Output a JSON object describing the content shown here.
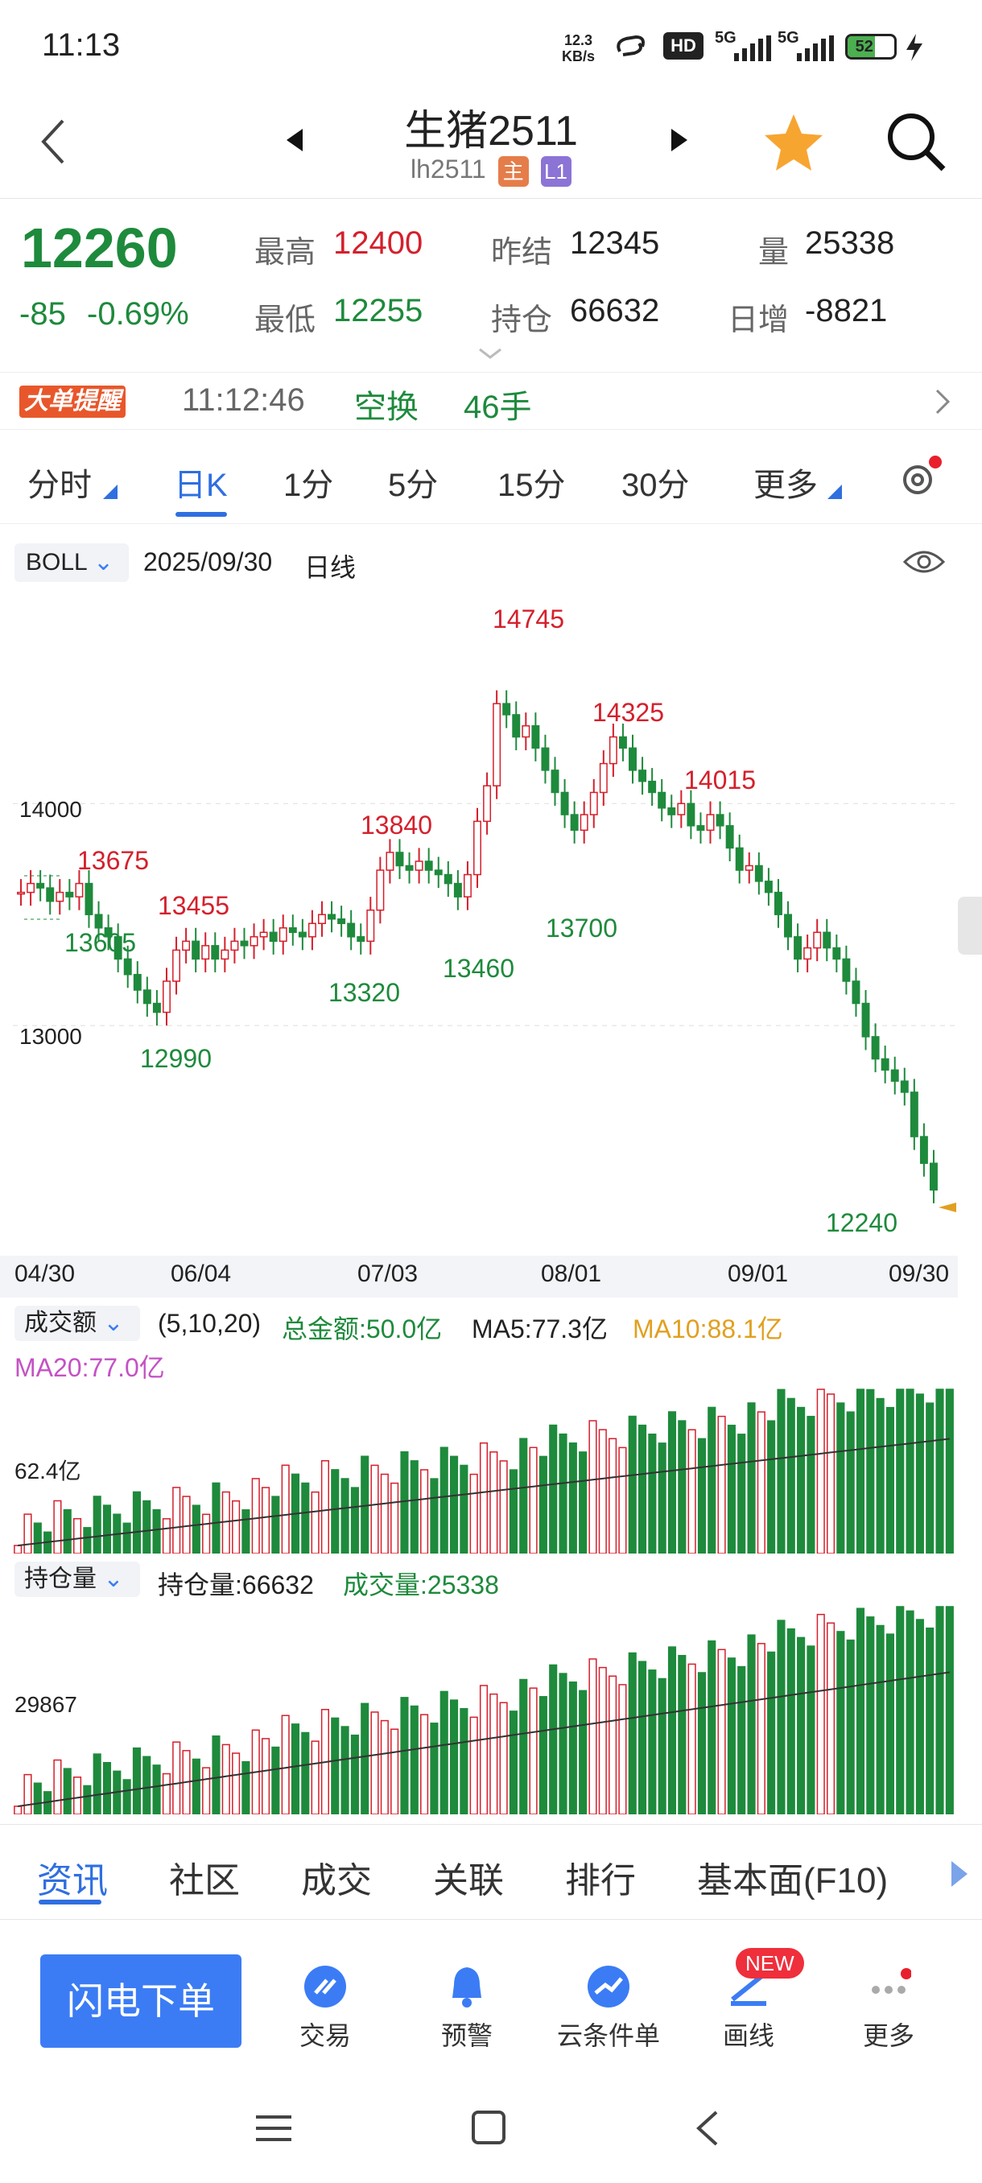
{
  "status_bar": {
    "time": "11:13",
    "net_speed": "12.3",
    "net_unit": "KB/s",
    "signal_a": "5G",
    "signal_b": "5G",
    "battery": "52"
  },
  "header": {
    "title": "生猪2511",
    "code": "lh2511",
    "tag_main": "主",
    "tag_level": "L1"
  },
  "quote": {
    "price": "12260",
    "change": "-85",
    "change_pct": "-0.69%",
    "high_label": "最高",
    "high": "12400",
    "low_label": "最低",
    "low": "12255",
    "prev_settle_label": "昨结",
    "prev_settle": "12345",
    "open_interest_label": "持仓",
    "open_interest": "66632",
    "volume_label": "量",
    "volume": "25338",
    "daily_inc_label": "日增",
    "daily_inc": "-8821"
  },
  "alert": {
    "badge_a": "大单",
    "badge_b": "提醒",
    "time": "11:12:46",
    "type": "空换",
    "amount": "46手"
  },
  "tabs": [
    "分时",
    "日K",
    "1分",
    "5分",
    "15分",
    "30分",
    "更多"
  ],
  "active_tab": "日K",
  "chart_header": {
    "indicator": "BOLL",
    "date": "2025/09/30",
    "period": "日线"
  },
  "chart_data": {
    "type": "candlestick",
    "y_ticks": [
      "14000",
      "13000"
    ],
    "x_ticks": [
      "04/30",
      "06/04",
      "07/03",
      "08/01",
      "09/01",
      "09/30"
    ],
    "annotations": [
      {
        "text": "14745",
        "kind": "high"
      },
      {
        "text": "14325",
        "kind": "high"
      },
      {
        "text": "14015",
        "kind": "high"
      },
      {
        "text": "13840",
        "kind": "high"
      },
      {
        "text": "13675",
        "kind": "high"
      },
      {
        "text": "13455",
        "kind": "high"
      },
      {
        "text": "13605",
        "kind": "low"
      },
      {
        "text": "13320",
        "kind": "low"
      },
      {
        "text": "13460",
        "kind": "low"
      },
      {
        "text": "13700",
        "kind": "low"
      },
      {
        "text": "12990",
        "kind": "low"
      },
      {
        "text": "12240",
        "kind": "low"
      }
    ],
    "closes": [
      13600,
      13640,
      13620,
      13560,
      13600,
      13580,
      13640,
      13500,
      13440,
      13400,
      13300,
      13230,
      13160,
      13100,
      13060,
      13200,
      13340,
      13380,
      13300,
      13360,
      13300,
      13340,
      13380,
      13360,
      13400,
      13420,
      13380,
      13440,
      13420,
      13400,
      13460,
      13500,
      13480,
      13460,
      13400,
      13380,
      13520,
      13700,
      13780,
      13720,
      13700,
      13740,
      13700,
      13680,
      13640,
      13580,
      13680,
      13920,
      14080,
      14450,
      14400,
      14300,
      14350,
      14250,
      14150,
      14050,
      13950,
      13880,
      13950,
      14050,
      14180,
      14300,
      14250,
      14150,
      14100,
      14050,
      13980,
      13950,
      14000,
      13900,
      13880,
      13950,
      13900,
      13800,
      13700,
      13720,
      13650,
      13600,
      13500,
      13400,
      13300,
      13350,
      13420,
      13350,
      13300,
      13200,
      13100,
      12950,
      12850,
      12800,
      12750,
      12700,
      12500,
      12380,
      12260
    ]
  },
  "volume_panel": {
    "indicator": "成交额",
    "params": "(5,10,20)",
    "total": "总金额:50.0亿",
    "ma5": "MA5:77.3亿",
    "ma10": "MA10:88.1亿",
    "ma20": "MA20:77.0亿",
    "y_label": "62.4亿"
  },
  "oi_panel": {
    "indicator": "持仓量",
    "oi": "持仓量:66632",
    "vol": "成交量:25338",
    "y_label": "29867"
  },
  "bottom_tabs": [
    "资讯",
    "社区",
    "成交",
    "关联",
    "排行",
    "基本面(F10)"
  ],
  "bottom_nav": {
    "fast_order": "闪电下单",
    "items": [
      "交易",
      "预警",
      "云条件单",
      "画线",
      "更多"
    ],
    "new_badge": "NEW"
  },
  "colors": {
    "up": "#d4202c",
    "down": "#1e8a3c",
    "accent": "#2f6fe0"
  }
}
